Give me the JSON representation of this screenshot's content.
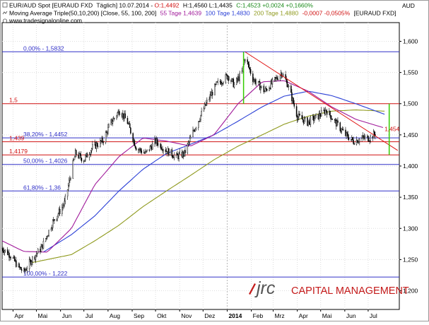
{
  "header": {
    "line1_symbol": "EUR/AUD Spot [EURAUD FXD",
    "line1_period": "Täglich] 10.07.2014 -",
    "line1_open": "O:1,4492",
    "line1_rest": "H:1,4560 L:1,4435",
    "line1_close": "C:1,4523 +0,0024 +0,1660%",
    "line2_label": "Moving Average Triple(50,10,200) [Close, 55, 100, 200]",
    "ma55_label": "55 Tage 1,4639",
    "ma100_label": "100 Tage 1,4830",
    "ma200_label": "200 Tage 1,4880",
    "line2_change": "-0,0007 -0,0505%",
    "line2_symbol": "[EURAUD FXD]",
    "website": "www.tradesignalonline.com",
    "currency": "AUD"
  },
  "logo": {
    "mark": "jrc",
    "text": "CAPITAL MANAGEMENT"
  },
  "colors": {
    "candle": "#000000",
    "ma55": "#a0199a",
    "ma100": "#2a3fd6",
    "ma200": "#8f9a1e",
    "fib": "#3030c8",
    "level": "#d01010",
    "trend": "#e01010",
    "marker": "#33cc00",
    "logo_red": "#c41a1a"
  },
  "chart_data": {
    "type": "candlestick",
    "title": "EUR/AUD Spot [EURAUD FXD] Täglich",
    "ylabel": "AUD",
    "ylim": [
      1.17,
      1.63
    ],
    "yticks": [
      "1,600",
      "1,550",
      "1,500",
      "1,450",
      "1,400",
      "1,350",
      "1,300",
      "1,250",
      "1,200"
    ],
    "ytick_values": [
      1.6,
      1.55,
      1.5,
      1.45,
      1.4,
      1.35,
      1.3,
      1.25,
      1.2
    ],
    "x_months": [
      "Apr",
      "Mai",
      "Jun",
      "Jul",
      "Aug",
      "Sep",
      "Okt",
      "Nov",
      "Dez",
      "2014",
      "Feb",
      "Mrz",
      "Apr",
      "Mai",
      "Jun",
      "Jul"
    ],
    "x_range": [
      "2013-03-18",
      "2014-08-10"
    ],
    "grid": true,
    "fib_levels": [
      {
        "label": "0,00% - 1,5832",
        "value": 1.5832
      },
      {
        "label": "38,20% - 1,4452",
        "value": 1.4452
      },
      {
        "label": "50,00% - 1,4026",
        "value": 1.4026
      },
      {
        "label": "61,80% - 1,36",
        "value": 1.36
      },
      {
        "label": "100,00% - 1,222",
        "value": 1.222
      }
    ],
    "horizontal_levels": [
      {
        "label": "1,5",
        "value": 1.5
      },
      {
        "label": "1,439",
        "value": 1.439
      },
      {
        "label": "1,4179",
        "value": 1.4179
      }
    ],
    "annotations": [
      {
        "label": "1,454",
        "date": "2014-07-22",
        "value": 1.454
      }
    ],
    "trendline": {
      "start": {
        "date": "2014-01-24",
        "value": 1.583
      },
      "end": {
        "date": "2014-08-08",
        "value": 1.425
      }
    },
    "marker_lines": [
      {
        "date": "2014-01-22",
        "from": 1.5,
        "to": 1.583
      },
      {
        "date": "2014-07-28",
        "from": 1.418,
        "to": 1.5
      }
    ],
    "price_anchors": [
      [
        "2013-03-18",
        1.268
      ],
      [
        "2013-03-28",
        1.258
      ],
      [
        "2013-04-08",
        1.238
      ],
      [
        "2013-04-15",
        1.23
      ],
      [
        "2013-04-25",
        1.25
      ],
      [
        "2013-05-08",
        1.27
      ],
      [
        "2013-05-22",
        1.31
      ],
      [
        "2013-06-06",
        1.34
      ],
      [
        "2013-06-20",
        1.42
      ],
      [
        "2013-07-01",
        1.41
      ],
      [
        "2013-07-12",
        1.43
      ],
      [
        "2013-07-25",
        1.44
      ],
      [
        "2013-08-05",
        1.47
      ],
      [
        "2013-08-16",
        1.49
      ],
      [
        "2013-08-26",
        1.47
      ],
      [
        "2013-09-06",
        1.43
      ],
      [
        "2013-09-18",
        1.42
      ],
      [
        "2013-10-01",
        1.44
      ],
      [
        "2013-10-15",
        1.425
      ],
      [
        "2013-10-28",
        1.415
      ],
      [
        "2013-11-07",
        1.42
      ],
      [
        "2013-11-20",
        1.46
      ],
      [
        "2013-12-05",
        1.5
      ],
      [
        "2013-12-18",
        1.53
      ],
      [
        "2014-01-02",
        1.545
      ],
      [
        "2014-01-10",
        1.53
      ],
      [
        "2014-01-20",
        1.55
      ],
      [
        "2014-01-24",
        1.575
      ],
      [
        "2014-02-03",
        1.54
      ],
      [
        "2014-02-18",
        1.52
      ],
      [
        "2014-03-05",
        1.54
      ],
      [
        "2014-03-12",
        1.55
      ],
      [
        "2014-03-20",
        1.53
      ],
      [
        "2014-04-01",
        1.48
      ],
      [
        "2014-04-14",
        1.47
      ],
      [
        "2014-04-28",
        1.48
      ],
      [
        "2014-05-08",
        1.49
      ],
      [
        "2014-05-20",
        1.47
      ],
      [
        "2014-06-02",
        1.45
      ],
      [
        "2014-06-12",
        1.44
      ],
      [
        "2014-06-25",
        1.445
      ],
      [
        "2014-07-03",
        1.445
      ],
      [
        "2014-07-10",
        1.452
      ]
    ],
    "ma55_anchors": [
      [
        "2013-03-18",
        1.28
      ],
      [
        "2013-04-15",
        1.263
      ],
      [
        "2013-05-15",
        1.262
      ],
      [
        "2013-06-15",
        1.3
      ],
      [
        "2013-07-15",
        1.37
      ],
      [
        "2013-08-15",
        1.415
      ],
      [
        "2013-09-15",
        1.445
      ],
      [
        "2013-10-15",
        1.44
      ],
      [
        "2013-11-15",
        1.432
      ],
      [
        "2013-12-15",
        1.45
      ],
      [
        "2014-01-15",
        1.5
      ],
      [
        "2014-02-15",
        1.535
      ],
      [
        "2014-03-15",
        1.537
      ],
      [
        "2014-04-15",
        1.52
      ],
      [
        "2014-05-15",
        1.495
      ],
      [
        "2014-06-15",
        1.475
      ],
      [
        "2014-07-22",
        1.461
      ]
    ],
    "ma100_anchors": [
      [
        "2013-05-10",
        1.262
      ],
      [
        "2013-06-15",
        1.29
      ],
      [
        "2013-07-15",
        1.32
      ],
      [
        "2013-08-15",
        1.36
      ],
      [
        "2013-09-15",
        1.395
      ],
      [
        "2013-10-15",
        1.42
      ],
      [
        "2013-11-15",
        1.435
      ],
      [
        "2013-12-15",
        1.45
      ],
      [
        "2014-01-15",
        1.472
      ],
      [
        "2014-02-15",
        1.495
      ],
      [
        "2014-03-15",
        1.512
      ],
      [
        "2014-04-15",
        1.52
      ],
      [
        "2014-05-15",
        1.513
      ],
      [
        "2014-06-15",
        1.5
      ],
      [
        "2014-07-22",
        1.483
      ]
    ],
    "ma200_anchors": [
      [
        "2013-04-25",
        1.245
      ],
      [
        "2013-06-15",
        1.258
      ],
      [
        "2013-07-15",
        1.28
      ],
      [
        "2013-08-15",
        1.305
      ],
      [
        "2013-09-15",
        1.335
      ],
      [
        "2013-10-15",
        1.36
      ],
      [
        "2013-11-15",
        1.385
      ],
      [
        "2013-12-15",
        1.41
      ],
      [
        "2014-01-15",
        1.432
      ],
      [
        "2014-02-15",
        1.45
      ],
      [
        "2014-03-15",
        1.467
      ],
      [
        "2014-04-15",
        1.48
      ],
      [
        "2014-05-15",
        1.488
      ],
      [
        "2014-06-15",
        1.49
      ],
      [
        "2014-07-22",
        1.488
      ]
    ]
  }
}
